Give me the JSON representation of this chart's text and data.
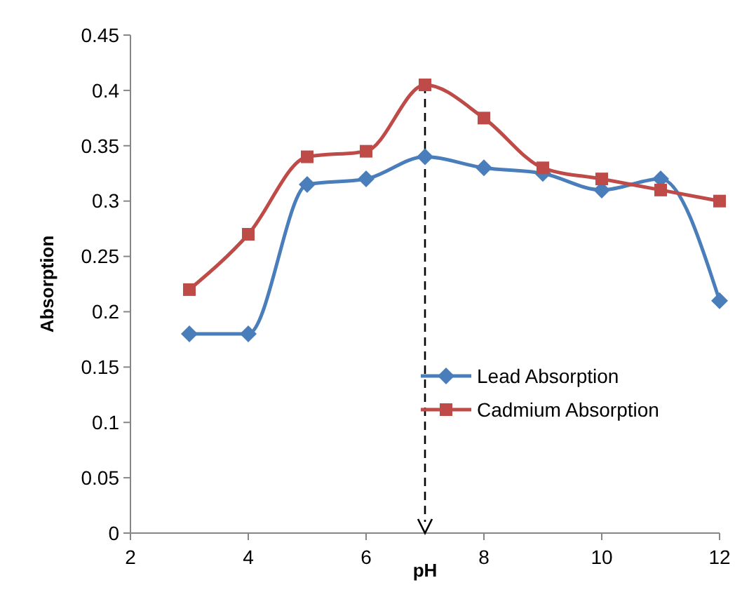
{
  "chart_data": {
    "type": "line",
    "xlabel": "pH",
    "ylabel": "Absorption",
    "xlim": [
      2,
      12
    ],
    "xticks": [
      2,
      4,
      6,
      8,
      10,
      12
    ],
    "ylim": [
      0,
      0.45
    ],
    "yticks": [
      0,
      0.05,
      0.1,
      0.15,
      0.2,
      0.25,
      0.3,
      0.35,
      0.4,
      0.45
    ],
    "series": [
      {
        "name": "Lead Absorption",
        "color": "#4a7ebb",
        "marker": "diamond",
        "x": [
          3,
          4,
          5,
          6,
          7,
          8,
          9,
          10,
          11,
          12
        ],
        "values": [
          0.18,
          0.18,
          0.315,
          0.32,
          0.34,
          0.33,
          0.325,
          0.31,
          0.32,
          0.21
        ]
      },
      {
        "name": "Cadmium Absorption",
        "color": "#be4b48",
        "marker": "square",
        "x": [
          3,
          4,
          5,
          6,
          7,
          8,
          9,
          10,
          11,
          12
        ],
        "values": [
          0.22,
          0.27,
          0.34,
          0.345,
          0.405,
          0.375,
          0.33,
          0.32,
          0.31,
          0.3
        ]
      }
    ],
    "ref_lines": [
      {
        "axis": "x",
        "value": 7,
        "line_style": "dashed",
        "color": "#000000"
      }
    ],
    "legend": "right",
    "grid": false
  }
}
